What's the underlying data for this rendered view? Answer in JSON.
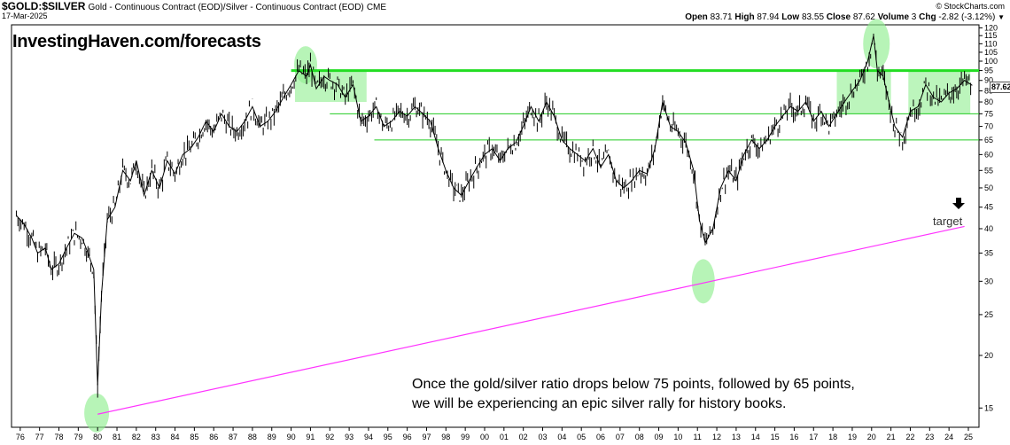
{
  "header": {
    "symbol": "$GOLD:$SILVER",
    "description": "Gold - Continuous Contract (EOD)/Silver - Continuous Contract (EOD)",
    "exchange": "CME",
    "date": "17-Mar-2025",
    "copyright": "© StockCharts.com",
    "open_label": "Open",
    "open": "83.71",
    "high_label": "High",
    "high": "87.94",
    "low_label": "Low",
    "low": "83.55",
    "close_label": "Close",
    "close": "87.62",
    "volume_label": "Volume",
    "volume": "3",
    "chg_label": "Chg",
    "chg": "-2.82 (-3.12%)"
  },
  "watermark": "InvestingHaven.com/forecasts",
  "annotation": {
    "note_line1": "Once the gold/silver ratio drops below 75 points, followed by 65 points,",
    "note_line2": "we will be experiencing an epic silver rally for history books.",
    "target_label": "target"
  },
  "price_tag": "87.62",
  "colors": {
    "price": "#000000",
    "resistance": "#22dd22",
    "support": "#22cc22",
    "trendline": "#ff33ff",
    "highlight": "#90ee90"
  },
  "chart_data": {
    "type": "line",
    "scale": "log",
    "ylim": [
      13.5,
      122
    ],
    "x_tick_labels": [
      "76",
      "77",
      "78",
      "79",
      "80",
      "81",
      "82",
      "83",
      "84",
      "85",
      "86",
      "87",
      "88",
      "89",
      "90",
      "91",
      "92",
      "93",
      "94",
      "95",
      "96",
      "97",
      "98",
      "99",
      "00",
      "01",
      "02",
      "03",
      "04",
      "05",
      "06",
      "07",
      "08",
      "09",
      "10",
      "11",
      "12",
      "13",
      "14",
      "15",
      "16",
      "17",
      "18",
      "19",
      "20",
      "21",
      "22",
      "23",
      "24",
      "25"
    ],
    "y_ticks": [
      15,
      20,
      25,
      30,
      35,
      40,
      45,
      50,
      55,
      60,
      65,
      70,
      75,
      80,
      85,
      90,
      95,
      100,
      105,
      110,
      115,
      120
    ],
    "series": [
      {
        "x": [
          1975.8,
          1976.2,
          1976.6,
          1976.9,
          1977.3,
          1977.6,
          1978.0,
          1978.4,
          1978.8,
          1979.2,
          1979.5,
          1979.8,
          1980.0,
          1980.2,
          1980.5,
          1980.9,
          1981.3,
          1981.7,
          1982.0,
          1982.4,
          1982.8,
          1983.2,
          1983.6,
          1984.0,
          1984.4,
          1984.8,
          1985.2,
          1985.6,
          1986.0,
          1986.4,
          1986.8,
          1987.2,
          1987.6,
          1988.0,
          1988.4,
          1988.8,
          1989.2,
          1989.6,
          1990.0,
          1990.4,
          1990.8,
          1991.0,
          1991.3,
          1991.7,
          1992.0,
          1992.4,
          1992.8,
          1993.2,
          1993.6,
          1994.0,
          1994.4,
          1994.8,
          1995.2,
          1995.6,
          1996.0,
          1996.4,
          1996.8,
          1997.2,
          1997.6,
          1998.0,
          1998.4,
          1998.8,
          1999.2,
          1999.6,
          2000.0,
          2000.4,
          2000.8,
          2001.2,
          2001.6,
          2002.0,
          2002.4,
          2002.8,
          2003.2,
          2003.6,
          2004.0,
          2004.4,
          2004.8,
          2005.2,
          2005.6,
          2006.0,
          2006.4,
          2006.8,
          2007.2,
          2007.6,
          2008.0,
          2008.4,
          2008.8,
          2009.2,
          2009.6,
          2010.0,
          2010.4,
          2010.8,
          2011.1,
          2011.4,
          2011.8,
          2012.2,
          2012.6,
          2013.0,
          2013.4,
          2013.8,
          2014.2,
          2014.6,
          2015.0,
          2015.4,
          2015.8,
          2016.2,
          2016.6,
          2017.0,
          2017.4,
          2017.8,
          2018.2,
          2018.6,
          2019.0,
          2019.4,
          2019.8,
          2020.1,
          2020.3,
          2020.6,
          2020.9,
          2021.2,
          2021.6,
          2022.0,
          2022.4,
          2022.8,
          2023.2,
          2023.6,
          2024.0,
          2024.4,
          2024.8,
          2025.2
        ],
        "y": [
          43,
          41,
          38,
          35,
          36,
          32,
          33,
          36,
          39,
          38,
          35,
          32,
          17,
          28,
          42,
          45,
          55,
          52,
          58,
          48,
          55,
          50,
          58,
          54,
          60,
          62,
          66,
          72,
          68,
          75,
          70,
          68,
          72,
          78,
          70,
          72,
          76,
          82,
          88,
          95,
          92,
          98,
          86,
          92,
          90,
          88,
          82,
          88,
          72,
          74,
          78,
          70,
          72,
          76,
          74,
          78,
          75,
          72,
          62,
          55,
          50,
          48,
          52,
          56,
          60,
          62,
          58,
          62,
          64,
          70,
          78,
          72,
          80,
          74,
          65,
          62,
          60,
          58,
          62,
          56,
          60,
          52,
          50,
          52,
          55,
          54,
          62,
          80,
          70,
          68,
          64,
          55,
          42,
          37,
          40,
          50,
          55,
          52,
          60,
          65,
          62,
          65,
          70,
          74,
          78,
          76,
          80,
          72,
          76,
          70,
          75,
          80,
          85,
          90,
          100,
          115,
          95,
          92,
          80,
          70,
          66,
          76,
          78,
          88,
          82,
          80,
          84,
          86,
          90,
          87.6
        ]
      }
    ],
    "resistance_levels": [
      95,
      75,
      65
    ],
    "trendline": {
      "x1": 1980.0,
      "y1": 14.5,
      "x2": 2024.8,
      "y2": 40.5
    }
  }
}
